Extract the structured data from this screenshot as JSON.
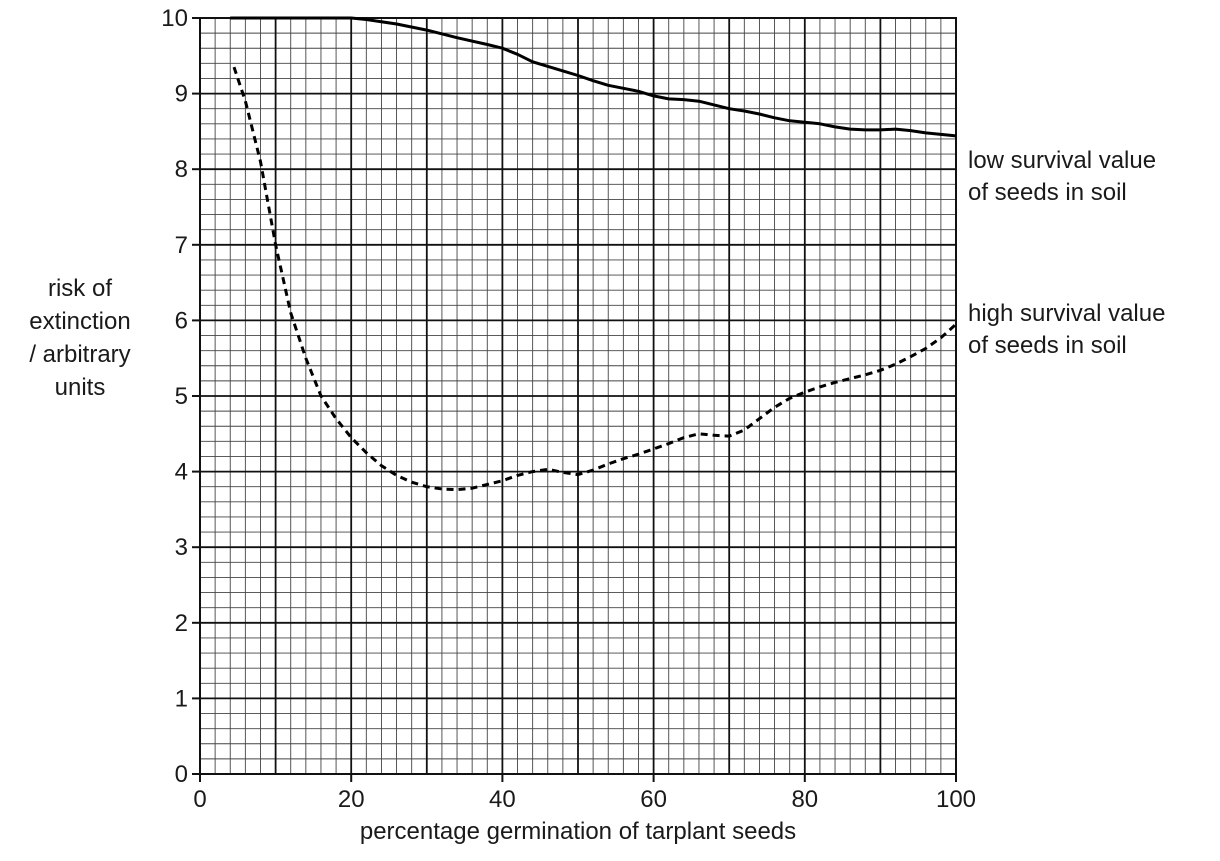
{
  "chart_data": {
    "type": "line",
    "title": "",
    "xlabel": "percentage germination of tarplant seeds",
    "ylabel_lines": [
      "risk of",
      "extinction",
      "/ arbitrary",
      "units"
    ],
    "xlim": [
      0,
      100
    ],
    "ylim": [
      0,
      10
    ],
    "x_ticks": [
      0,
      20,
      40,
      60,
      80,
      100
    ],
    "y_ticks": [
      0,
      1,
      2,
      3,
      4,
      5,
      6,
      7,
      8,
      9,
      10
    ],
    "grid": true,
    "series": [
      {
        "name": "low survival value of seeds in soil",
        "name_lines": [
          "low survival value",
          "of seeds in soil"
        ],
        "style": "solid",
        "color": "#000000",
        "x": [
          4,
          8,
          12,
          16,
          20,
          22,
          26,
          30,
          34,
          38,
          40,
          42,
          44,
          48,
          50,
          52,
          54,
          56,
          58,
          60,
          62,
          64,
          66,
          68,
          70,
          72,
          74,
          76,
          78,
          80,
          82,
          84,
          86,
          88,
          90,
          92,
          94,
          96,
          98,
          100
        ],
        "y": [
          10,
          10,
          10,
          10,
          10,
          9.98,
          9.92,
          9.84,
          9.74,
          9.65,
          9.6,
          9.52,
          9.42,
          9.3,
          9.24,
          9.17,
          9.11,
          9.07,
          9.03,
          8.97,
          8.93,
          8.92,
          8.9,
          8.85,
          8.8,
          8.77,
          8.73,
          8.68,
          8.64,
          8.62,
          8.6,
          8.56,
          8.53,
          8.52,
          8.52,
          8.53,
          8.51,
          8.48,
          8.46,
          8.44
        ]
      },
      {
        "name": "high survival value of seeds in soil",
        "name_lines": [
          "high survival value",
          "of seeds in soil"
        ],
        "style": "dashed",
        "color": "#000000",
        "x": [
          4.5,
          6,
          8,
          10,
          12,
          14,
          16,
          18,
          20,
          22,
          24,
          26,
          28,
          30,
          32,
          34,
          36,
          38,
          40,
          42,
          44,
          46,
          48,
          50,
          52,
          54,
          56,
          58,
          60,
          62,
          64,
          66,
          68,
          70,
          72,
          74,
          76,
          78,
          80,
          82,
          84,
          86,
          88,
          90,
          92,
          94,
          96,
          98,
          100
        ],
        "y": [
          9.35,
          8.9,
          8.1,
          7.0,
          6.1,
          5.5,
          5.0,
          4.7,
          4.45,
          4.25,
          4.08,
          3.95,
          3.86,
          3.8,
          3.77,
          3.76,
          3.78,
          3.83,
          3.88,
          3.95,
          4.0,
          4.03,
          3.99,
          3.96,
          4.02,
          4.1,
          4.17,
          4.23,
          4.3,
          4.37,
          4.45,
          4.5,
          4.48,
          4.47,
          4.55,
          4.7,
          4.85,
          4.97,
          5.05,
          5.12,
          5.18,
          5.23,
          5.28,
          5.34,
          5.42,
          5.52,
          5.63,
          5.77,
          5.95
        ]
      }
    ]
  }
}
